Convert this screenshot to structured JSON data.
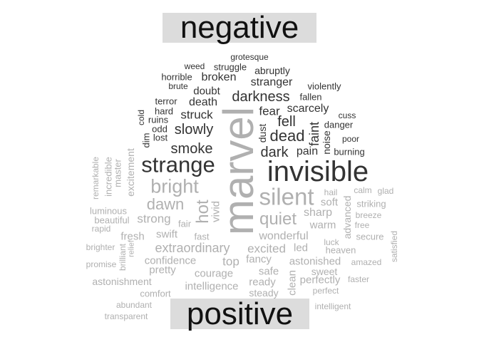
{
  "chart_data": {
    "type": "comparison-wordcloud",
    "groups": [
      {
        "label": "negative",
        "color": "#333333"
      },
      {
        "label": "positive",
        "color": "#b0b0b0"
      }
    ],
    "words": [
      {
        "text": "marvel",
        "group": "positive",
        "size": 60,
        "vertical": true
      },
      {
        "text": "invisible",
        "group": "negative",
        "size": 40,
        "vertical": false
      },
      {
        "text": "strange",
        "group": "negative",
        "size": 31,
        "vertical": false
      },
      {
        "text": "silent",
        "group": "positive",
        "size": 33,
        "vertical": false
      },
      {
        "text": "bright",
        "group": "positive",
        "size": 27,
        "vertical": false
      },
      {
        "text": "dead",
        "group": "negative",
        "size": 22,
        "vertical": false
      },
      {
        "text": "quiet",
        "group": "positive",
        "size": 24,
        "vertical": false
      },
      {
        "text": "slowly",
        "group": "negative",
        "size": 20,
        "vertical": false
      },
      {
        "text": "smoke",
        "group": "negative",
        "size": 20,
        "vertical": false
      },
      {
        "text": "darkness",
        "group": "negative",
        "size": 20,
        "vertical": false
      },
      {
        "text": "hot",
        "group": "positive",
        "size": 24,
        "vertical": true
      },
      {
        "text": "dawn",
        "group": "positive",
        "size": 22,
        "vertical": false
      },
      {
        "text": "dark",
        "group": "negative",
        "size": 20,
        "vertical": false
      },
      {
        "text": "fell",
        "group": "negative",
        "size": 20,
        "vertical": false
      },
      {
        "text": "extraordinary",
        "group": "positive",
        "size": 18,
        "vertical": false
      },
      {
        "text": "excited",
        "group": "positive",
        "size": 17,
        "vertical": false
      },
      {
        "text": "struck",
        "group": "negative",
        "size": 17,
        "vertical": false
      },
      {
        "text": "strong",
        "group": "positive",
        "size": 17,
        "vertical": false
      },
      {
        "text": "fear",
        "group": "negative",
        "size": 17,
        "vertical": false
      },
      {
        "text": "wonderful",
        "group": "positive",
        "size": 16,
        "vertical": false
      },
      {
        "text": "sharp",
        "group": "positive",
        "size": 16,
        "vertical": false
      },
      {
        "text": "pain",
        "group": "negative",
        "size": 16,
        "vertical": false
      },
      {
        "text": "top",
        "group": "positive",
        "size": 17,
        "vertical": false
      },
      {
        "text": "scarcely",
        "group": "negative",
        "size": 16,
        "vertical": false
      },
      {
        "text": "faint",
        "group": "negative",
        "size": 18,
        "vertical": true
      },
      {
        "text": "stranger",
        "group": "negative",
        "size": 16,
        "vertical": false
      },
      {
        "text": "broken",
        "group": "negative",
        "size": 16,
        "vertical": false
      },
      {
        "text": "death",
        "group": "negative",
        "size": 16,
        "vertical": false
      },
      {
        "text": "doubt",
        "group": "negative",
        "size": 15,
        "vertical": false
      },
      {
        "text": "swift",
        "group": "positive",
        "size": 15,
        "vertical": false
      },
      {
        "text": "fresh",
        "group": "positive",
        "size": 15,
        "vertical": false
      },
      {
        "text": "confidence",
        "group": "positive",
        "size": 15,
        "vertical": false
      },
      {
        "text": "courage",
        "group": "positive",
        "size": 15,
        "vertical": false
      },
      {
        "text": "intelligence",
        "group": "positive",
        "size": 15,
        "vertical": false
      },
      {
        "text": "astonished",
        "group": "positive",
        "size": 15,
        "vertical": false
      },
      {
        "text": "fancy",
        "group": "positive",
        "size": 15,
        "vertical": false
      },
      {
        "text": "ready",
        "group": "positive",
        "size": 15,
        "vertical": false
      },
      {
        "text": "safe",
        "group": "positive",
        "size": 15,
        "vertical": false
      },
      {
        "text": "perfectly",
        "group": "positive",
        "size": 15,
        "vertical": false
      },
      {
        "text": "soft",
        "group": "positive",
        "size": 15,
        "vertical": false
      },
      {
        "text": "warm",
        "group": "positive",
        "size": 15,
        "vertical": false
      },
      {
        "text": "pretty",
        "group": "positive",
        "size": 15,
        "vertical": false
      },
      {
        "text": "sweet",
        "group": "positive",
        "size": 14,
        "vertical": false
      },
      {
        "text": "led",
        "group": "positive",
        "size": 15,
        "vertical": false
      },
      {
        "text": "clean",
        "group": "positive",
        "size": 15,
        "vertical": true
      },
      {
        "text": "vivid",
        "group": "positive",
        "size": 15,
        "vertical": true
      },
      {
        "text": "steady",
        "group": "positive",
        "size": 14,
        "vertical": false
      },
      {
        "text": "abruptly",
        "group": "negative",
        "size": 14,
        "vertical": false
      },
      {
        "text": "excitement",
        "group": "positive",
        "size": 14,
        "vertical": true
      },
      {
        "text": "dust",
        "group": "negative",
        "size": 14,
        "vertical": true
      },
      {
        "text": "noise",
        "group": "negative",
        "size": 14,
        "vertical": true
      },
      {
        "text": "advanced",
        "group": "positive",
        "size": 14,
        "vertical": true
      },
      {
        "text": "astonishment",
        "group": "positive",
        "size": 14,
        "vertical": false
      },
      {
        "text": "luminous",
        "group": "positive",
        "size": 13,
        "vertical": false
      },
      {
        "text": "heaven",
        "group": "positive",
        "size": 13,
        "vertical": false
      },
      {
        "text": "terror",
        "group": "negative",
        "size": 13,
        "vertical": false
      },
      {
        "text": "hard",
        "group": "negative",
        "size": 13,
        "vertical": false
      },
      {
        "text": "ruins",
        "group": "negative",
        "size": 13,
        "vertical": false
      },
      {
        "text": "odd",
        "group": "negative",
        "size": 13,
        "vertical": false
      },
      {
        "text": "lost",
        "group": "negative",
        "size": 13,
        "vertical": false
      },
      {
        "text": "dim",
        "group": "negative",
        "size": 13,
        "vertical": true
      },
      {
        "text": "danger",
        "group": "negative",
        "size": 13,
        "vertical": false
      },
      {
        "text": "striking",
        "group": "positive",
        "size": 13,
        "vertical": false
      },
      {
        "text": "comfort",
        "group": "positive",
        "size": 13,
        "vertical": false
      },
      {
        "text": "master",
        "group": "positive",
        "size": 13,
        "vertical": true
      },
      {
        "text": "incredible",
        "group": "positive",
        "size": 13,
        "vertical": true
      },
      {
        "text": "beautiful",
        "group": "positive",
        "size": 13,
        "vertical": false
      },
      {
        "text": "struggle",
        "group": "negative",
        "size": 13,
        "vertical": false
      },
      {
        "text": "violently",
        "group": "negative",
        "size": 13,
        "vertical": false
      },
      {
        "text": "fallen",
        "group": "negative",
        "size": 13,
        "vertical": false
      },
      {
        "text": "horrible",
        "group": "negative",
        "size": 13,
        "vertical": false
      },
      {
        "text": "burning",
        "group": "negative",
        "size": 13,
        "vertical": false
      },
      {
        "text": "fast",
        "group": "positive",
        "size": 13,
        "vertical": false
      },
      {
        "text": "fair",
        "group": "positive",
        "size": 13,
        "vertical": false
      },
      {
        "text": "remarkable",
        "group": "positive",
        "size": 12,
        "vertical": true
      },
      {
        "text": "brilliant",
        "group": "positive",
        "size": 12,
        "vertical": true
      },
      {
        "text": "grotesque",
        "group": "negative",
        "size": 12,
        "vertical": false
      },
      {
        "text": "weed",
        "group": "negative",
        "size": 12,
        "vertical": false
      },
      {
        "text": "brute",
        "group": "negative",
        "size": 12,
        "vertical": false
      },
      {
        "text": "cold",
        "group": "negative",
        "size": 12,
        "vertical": true
      },
      {
        "text": "cuss",
        "group": "negative",
        "size": 12,
        "vertical": false
      },
      {
        "text": "poor",
        "group": "negative",
        "size": 12,
        "vertical": false
      },
      {
        "text": "hail",
        "group": "positive",
        "size": 12,
        "vertical": false
      },
      {
        "text": "calm",
        "group": "positive",
        "size": 12,
        "vertical": false
      },
      {
        "text": "glad",
        "group": "positive",
        "size": 12,
        "vertical": false
      },
      {
        "text": "breeze",
        "group": "positive",
        "size": 12,
        "vertical": false
      },
      {
        "text": "free",
        "group": "positive",
        "size": 12,
        "vertical": false
      },
      {
        "text": "secure",
        "group": "positive",
        "size": 13,
        "vertical": false
      },
      {
        "text": "luck",
        "group": "positive",
        "size": 12,
        "vertical": false
      },
      {
        "text": "amazed",
        "group": "positive",
        "size": 12,
        "vertical": false
      },
      {
        "text": "faster",
        "group": "positive",
        "size": 12,
        "vertical": false
      },
      {
        "text": "perfect",
        "group": "positive",
        "size": 12,
        "vertical": false
      },
      {
        "text": "satisfied",
        "group": "positive",
        "size": 12,
        "vertical": true
      },
      {
        "text": "rapid",
        "group": "positive",
        "size": 12,
        "vertical": false
      },
      {
        "text": "brighter",
        "group": "positive",
        "size": 12,
        "vertical": false
      },
      {
        "text": "relief",
        "group": "positive",
        "size": 11,
        "vertical": true
      },
      {
        "text": "promise",
        "group": "positive",
        "size": 12,
        "vertical": false
      },
      {
        "text": "abundant",
        "group": "positive",
        "size": 12,
        "vertical": false
      },
      {
        "text": "transparent",
        "group": "positive",
        "size": 12,
        "vertical": false
      },
      {
        "text": "intelligent",
        "group": "positive",
        "size": 12,
        "vertical": false
      }
    ]
  }
}
